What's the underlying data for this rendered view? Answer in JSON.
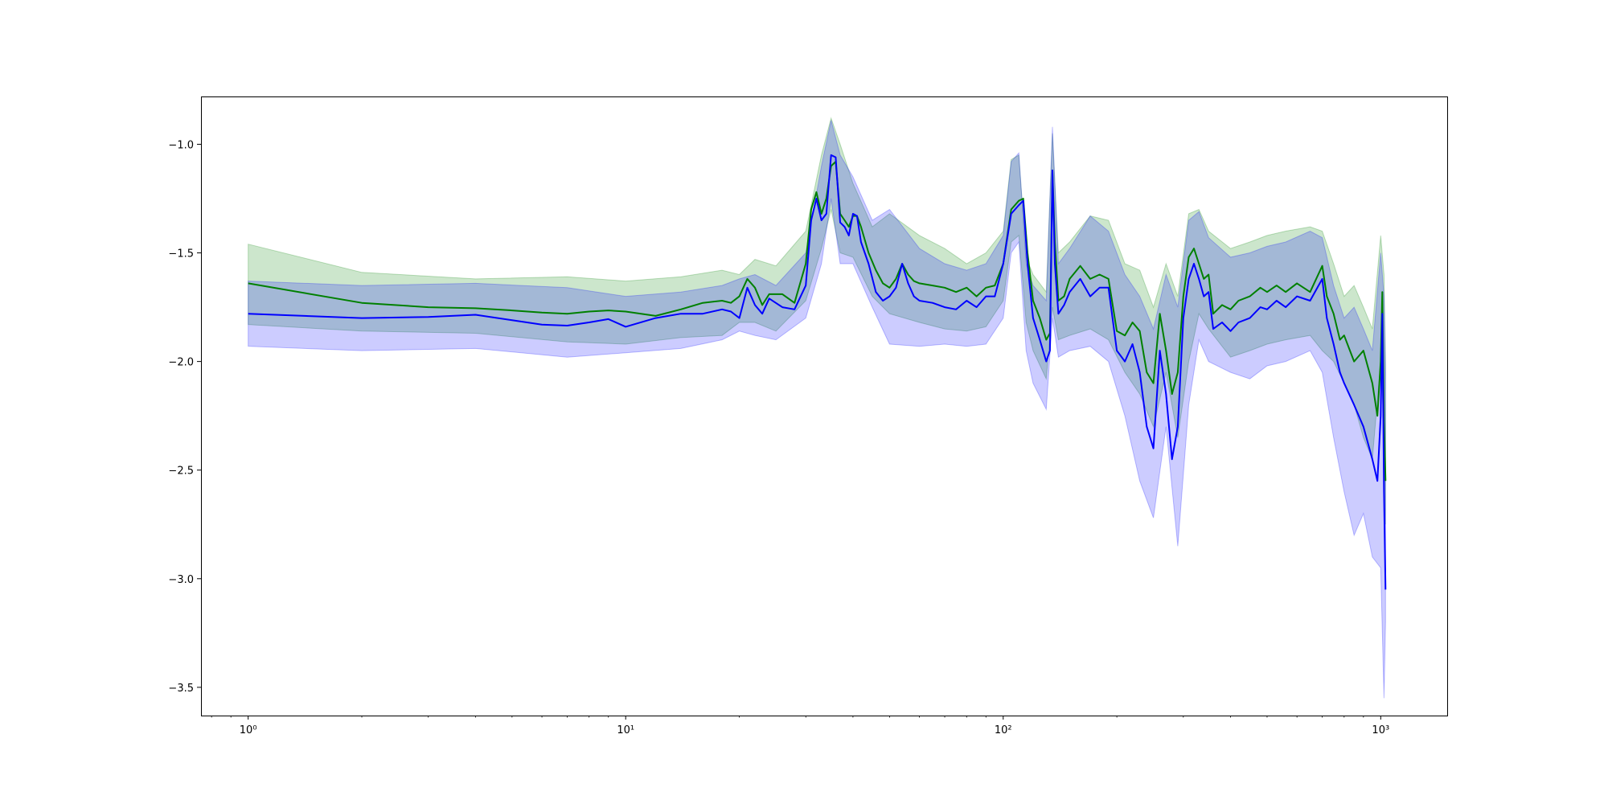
{
  "chart_data": {
    "type": "line",
    "title": "",
    "xlabel": "",
    "ylabel": "",
    "xscale": "log",
    "xlim": [
      0.75,
      1500
    ],
    "ylim": [
      -3.63,
      -0.78
    ],
    "grid": false,
    "legend": "none",
    "x_ticks": [
      {
        "value": 1,
        "label": "10⁰"
      },
      {
        "value": 10,
        "label": "10¹"
      },
      {
        "value": 100,
        "label": "10²"
      },
      {
        "value": 1000,
        "label": "10³"
      }
    ],
    "y_ticks": [
      {
        "value": -1.0,
        "label": "−1.0"
      },
      {
        "value": -1.5,
        "label": "−1.5"
      },
      {
        "value": -2.0,
        "label": "−2.0"
      },
      {
        "value": -2.5,
        "label": "−2.5"
      },
      {
        "value": -3.0,
        "label": "−3.0"
      },
      {
        "value": -3.5,
        "label": "−3.5"
      }
    ],
    "series": [
      {
        "color": "#008000",
        "band_color": "#008000",
        "x": [
          1,
          2,
          3,
          4,
          5,
          6,
          7,
          8,
          9,
          10,
          12,
          14,
          16,
          18,
          19,
          20,
          21,
          22,
          23,
          24,
          26,
          28,
          30,
          31,
          32,
          33,
          34,
          35,
          36,
          37,
          38,
          39,
          40,
          41,
          42,
          44,
          46,
          48,
          50,
          52,
          54,
          56,
          58,
          60,
          65,
          70,
          75,
          80,
          85,
          90,
          95,
          100,
          105,
          110,
          113,
          116,
          120,
          125,
          130,
          133,
          135,
          137,
          140,
          145,
          150,
          160,
          170,
          180,
          190,
          200,
          210,
          220,
          230,
          240,
          250,
          260,
          270,
          280,
          290,
          300,
          310,
          320,
          330,
          340,
          350,
          360,
          380,
          400,
          420,
          450,
          480,
          500,
          530,
          560,
          600,
          650,
          700,
          720,
          750,
          780,
          800,
          850,
          900,
          950,
          980,
          1000,
          1010,
          1020,
          1030
        ],
        "y": [
          -1.64,
          -1.73,
          -1.75,
          -1.755,
          -1.765,
          -1.775,
          -1.78,
          -1.77,
          -1.765,
          -1.77,
          -1.79,
          -1.76,
          -1.73,
          -1.72,
          -1.73,
          -1.7,
          -1.62,
          -1.66,
          -1.74,
          -1.69,
          -1.69,
          -1.73,
          -1.55,
          -1.3,
          -1.22,
          -1.32,
          -1.25,
          -1.1,
          -1.08,
          -1.32,
          -1.35,
          -1.38,
          -1.33,
          -1.33,
          -1.38,
          -1.5,
          -1.58,
          -1.64,
          -1.66,
          -1.62,
          -1.55,
          -1.6,
          -1.63,
          -1.64,
          -1.65,
          -1.66,
          -1.68,
          -1.66,
          -1.7,
          -1.66,
          -1.65,
          -1.55,
          -1.3,
          -1.26,
          -1.25,
          -1.5,
          -1.72,
          -1.8,
          -1.9,
          -1.87,
          -1.12,
          -1.45,
          -1.72,
          -1.7,
          -1.62,
          -1.56,
          -1.62,
          -1.6,
          -1.62,
          -1.86,
          -1.88,
          -1.82,
          -1.86,
          -2.05,
          -2.1,
          -1.78,
          -1.95,
          -2.15,
          -2.05,
          -1.7,
          -1.52,
          -1.48,
          -1.55,
          -1.62,
          -1.6,
          -1.78,
          -1.74,
          -1.76,
          -1.72,
          -1.7,
          -1.66,
          -1.68,
          -1.65,
          -1.68,
          -1.64,
          -1.68,
          -1.56,
          -1.7,
          -1.78,
          -1.9,
          -1.88,
          -2.0,
          -1.95,
          -2.1,
          -2.25,
          -2.0,
          -1.68,
          -2.28,
          -2.55
        ]
      },
      {
        "color": "#0000ff",
        "band_color": "#0000ff",
        "x": [
          1,
          2,
          3,
          4,
          5,
          6,
          7,
          8,
          9,
          10,
          12,
          14,
          16,
          18,
          19,
          20,
          21,
          22,
          23,
          24,
          26,
          28,
          30,
          31,
          32,
          33,
          34,
          35,
          36,
          37,
          38,
          39,
          40,
          41,
          42,
          44,
          46,
          48,
          50,
          52,
          54,
          56,
          58,
          60,
          65,
          70,
          75,
          80,
          85,
          90,
          95,
          100,
          105,
          110,
          113,
          116,
          120,
          125,
          130,
          133,
          135,
          137,
          140,
          145,
          150,
          160,
          170,
          180,
          190,
          200,
          210,
          220,
          230,
          240,
          250,
          260,
          270,
          280,
          290,
          300,
          310,
          320,
          330,
          340,
          350,
          360,
          380,
          400,
          420,
          450,
          480,
          500,
          530,
          560,
          600,
          650,
          700,
          720,
          750,
          780,
          800,
          850,
          900,
          950,
          980,
          1000,
          1010,
          1020,
          1030
        ],
        "y": [
          -1.78,
          -1.8,
          -1.795,
          -1.785,
          -1.81,
          -1.83,
          -1.835,
          -1.82,
          -1.805,
          -1.84,
          -1.8,
          -1.78,
          -1.78,
          -1.76,
          -1.77,
          -1.8,
          -1.66,
          -1.74,
          -1.78,
          -1.71,
          -1.75,
          -1.76,
          -1.65,
          -1.35,
          -1.25,
          -1.35,
          -1.32,
          -1.05,
          -1.06,
          -1.36,
          -1.38,
          -1.42,
          -1.32,
          -1.33,
          -1.45,
          -1.55,
          -1.68,
          -1.72,
          -1.7,
          -1.66,
          -1.55,
          -1.64,
          -1.7,
          -1.72,
          -1.73,
          -1.75,
          -1.76,
          -1.72,
          -1.75,
          -1.7,
          -1.7,
          -1.55,
          -1.32,
          -1.28,
          -1.26,
          -1.55,
          -1.8,
          -1.9,
          -2.0,
          -1.95,
          -1.12,
          -1.55,
          -1.78,
          -1.74,
          -1.68,
          -1.62,
          -1.7,
          -1.66,
          -1.66,
          -1.95,
          -2.0,
          -1.92,
          -2.05,
          -2.3,
          -2.4,
          -1.95,
          -2.15,
          -2.45,
          -2.3,
          -1.8,
          -1.62,
          -1.55,
          -1.62,
          -1.7,
          -1.68,
          -1.85,
          -1.82,
          -1.86,
          -1.82,
          -1.8,
          -1.75,
          -1.76,
          -1.72,
          -1.75,
          -1.7,
          -1.72,
          -1.62,
          -1.8,
          -1.92,
          -2.05,
          -2.1,
          -2.2,
          -2.3,
          -2.45,
          -2.55,
          -2.25,
          -1.78,
          -2.6,
          -3.05
        ]
      }
    ],
    "bands": [
      {
        "color": "#008000",
        "x": [
          1,
          2,
          4,
          7,
          10,
          14,
          18,
          20,
          22,
          25,
          30,
          33,
          35,
          37,
          40,
          45,
          50,
          60,
          70,
          80,
          90,
          100,
          105,
          110,
          115,
          120,
          130,
          135,
          140,
          150,
          170,
          190,
          210,
          230,
          250,
          270,
          290,
          310,
          330,
          350,
          400,
          450,
          500,
          560,
          650,
          700,
          750,
          800,
          850,
          900,
          950,
          1000,
          1020,
          1030
        ],
        "upper": [
          -1.46,
          -1.59,
          -1.62,
          -1.61,
          -1.63,
          -1.61,
          -1.58,
          -1.6,
          -1.53,
          -1.56,
          -1.4,
          -1.05,
          -0.88,
          -1.0,
          -1.18,
          -1.38,
          -1.32,
          -1.42,
          -1.48,
          -1.55,
          -1.5,
          -1.4,
          -1.07,
          -1.05,
          -1.52,
          -1.6,
          -1.68,
          -0.95,
          -1.5,
          -1.45,
          -1.33,
          -1.35,
          -1.55,
          -1.58,
          -1.75,
          -1.55,
          -1.7,
          -1.32,
          -1.3,
          -1.4,
          -1.48,
          -1.45,
          -1.42,
          -1.4,
          -1.38,
          -1.4,
          -1.55,
          -1.7,
          -1.65,
          -1.75,
          -1.85,
          -1.42,
          -1.6,
          -2.0
        ],
        "lower": [
          -1.83,
          -1.86,
          -1.87,
          -1.91,
          -1.92,
          -1.89,
          -1.88,
          -1.82,
          -1.82,
          -1.86,
          -1.72,
          -1.48,
          -1.3,
          -1.5,
          -1.52,
          -1.7,
          -1.78,
          -1.82,
          -1.85,
          -1.86,
          -1.84,
          -1.72,
          -1.45,
          -1.42,
          -1.82,
          -1.95,
          -2.08,
          -1.75,
          -1.9,
          -1.88,
          -1.85,
          -1.9,
          -2.05,
          -2.15,
          -2.3,
          -2.05,
          -2.35,
          -2.0,
          -1.78,
          -1.85,
          -1.98,
          -1.95,
          -1.92,
          -1.9,
          -1.88,
          -1.95,
          -2.0,
          -2.1,
          -2.2,
          -2.35,
          -2.45,
          -2.0,
          -2.3,
          -2.75
        ]
      },
      {
        "color": "#0000ff",
        "x": [
          1,
          2,
          4,
          7,
          10,
          14,
          18,
          20,
          22,
          25,
          30,
          33,
          35,
          37,
          40,
          45,
          50,
          60,
          70,
          80,
          90,
          100,
          105,
          110,
          115,
          120,
          130,
          135,
          140,
          150,
          170,
          190,
          210,
          230,
          250,
          270,
          290,
          310,
          330,
          350,
          400,
          450,
          500,
          560,
          650,
          700,
          750,
          800,
          850,
          900,
          950,
          1000,
          1020,
          1030
        ],
        "upper": [
          -1.63,
          -1.65,
          -1.64,
          -1.66,
          -1.7,
          -1.68,
          -1.65,
          -1.62,
          -1.6,
          -1.65,
          -1.5,
          -1.1,
          -0.89,
          -1.05,
          -1.15,
          -1.35,
          -1.3,
          -1.48,
          -1.55,
          -1.58,
          -1.55,
          -1.42,
          -1.08,
          -1.04,
          -1.55,
          -1.65,
          -1.72,
          -0.92,
          -1.55,
          -1.48,
          -1.33,
          -1.4,
          -1.6,
          -1.7,
          -1.85,
          -1.6,
          -1.75,
          -1.35,
          -1.31,
          -1.43,
          -1.52,
          -1.5,
          -1.47,
          -1.45,
          -1.4,
          -1.43,
          -1.65,
          -1.8,
          -1.75,
          -1.85,
          -1.95,
          -1.5,
          -1.7,
          -2.05
        ],
        "lower": [
          -1.93,
          -1.95,
          -1.94,
          -1.98,
          -1.96,
          -1.94,
          -1.9,
          -1.86,
          -1.88,
          -1.9,
          -1.8,
          -1.55,
          -1.25,
          -1.55,
          -1.55,
          -1.75,
          -1.92,
          -1.93,
          -1.92,
          -1.93,
          -1.92,
          -1.8,
          -1.5,
          -1.45,
          -1.95,
          -2.1,
          -2.22,
          -1.8,
          -1.98,
          -1.95,
          -1.93,
          -2.0,
          -2.25,
          -2.55,
          -2.72,
          -2.3,
          -2.85,
          -2.2,
          -1.9,
          -2.0,
          -2.05,
          -2.08,
          -2.02,
          -2.0,
          -1.95,
          -2.05,
          -2.35,
          -2.6,
          -2.8,
          -2.7,
          -2.9,
          -2.95,
          -3.55,
          -3.2
        ]
      }
    ]
  }
}
